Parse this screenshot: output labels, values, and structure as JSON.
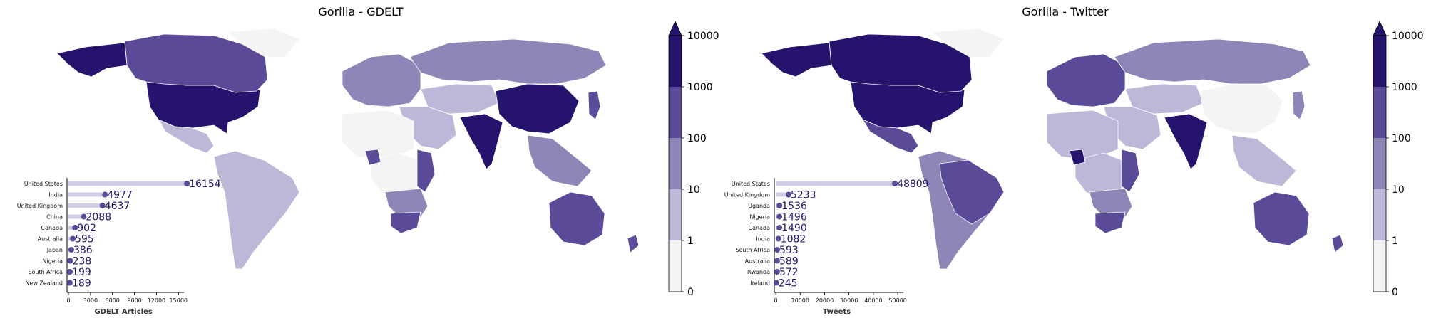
{
  "colors": {
    "bins": [
      "#f4f4f4",
      "#bcb9d8",
      "#8d86b7",
      "#5a4a98",
      "#26136e"
    ],
    "lollipop_line": "#d0ceE6",
    "lollipop_dot": "#5a4a98",
    "value_text": "#26136e"
  },
  "colorbar": {
    "labels": [
      "0",
      "1",
      "10",
      "100",
      "1000",
      "10000"
    ],
    "extend": "max"
  },
  "chart_data": [
    {
      "type": "choropleth",
      "title": "Gorilla - GDELT",
      "scale": "log bins",
      "regions": [
        {
          "name": "United States",
          "bin": 4
        },
        {
          "name": "Canada",
          "bin": 3
        },
        {
          "name": "Alaska",
          "bin": 4
        },
        {
          "name": "Mexico",
          "bin": 1
        },
        {
          "name": "South America",
          "bin": 1
        },
        {
          "name": "Greenland",
          "bin": 0
        },
        {
          "name": "Europe",
          "bin": 2
        },
        {
          "name": "Russia",
          "bin": 2
        },
        {
          "name": "Central Asia",
          "bin": 1
        },
        {
          "name": "Middle East",
          "bin": 1
        },
        {
          "name": "India",
          "bin": 4
        },
        {
          "name": "China",
          "bin": 4
        },
        {
          "name": "Southeast Asia",
          "bin": 2
        },
        {
          "name": "Japan",
          "bin": 3
        },
        {
          "name": "North Africa",
          "bin": 0
        },
        {
          "name": "Central Africa",
          "bin": 0
        },
        {
          "name": "East Africa",
          "bin": 3
        },
        {
          "name": "Southern Africa",
          "bin": 2
        },
        {
          "name": "South Africa",
          "bin": 3
        },
        {
          "name": "Australia",
          "bin": 3
        },
        {
          "name": "New Zealand",
          "bin": 3
        },
        {
          "name": "Nigeria",
          "bin": 3
        }
      ]
    },
    {
      "type": "bar",
      "orientation": "horizontal-lollipop",
      "xlabel": "GDELT Articles",
      "categories": [
        "United States",
        "India",
        "United Kingdom",
        "China",
        "Canada",
        "Australia",
        "Japan",
        "Nigeria",
        "South Africa",
        "New Zealand"
      ],
      "values": [
        16154,
        4977,
        4637,
        2088,
        902,
        595,
        386,
        238,
        199,
        189
      ],
      "value_labels": [
        "16154",
        "4977",
        "4637",
        "2088",
        "902",
        "595",
        "386",
        "238",
        "199",
        "189"
      ],
      "xticks": [
        0,
        3000,
        6000,
        9000,
        12000,
        15000
      ],
      "xtick_labels": [
        "0",
        "3000",
        "6000",
        "9000",
        "12000",
        "15000"
      ],
      "xlim": [
        0,
        17500
      ]
    },
    {
      "type": "choropleth",
      "title": "Gorilla - Twitter",
      "scale": "log bins",
      "regions": [
        {
          "name": "United States",
          "bin": 4
        },
        {
          "name": "Canada",
          "bin": 4
        },
        {
          "name": "Alaska",
          "bin": 4
        },
        {
          "name": "Mexico",
          "bin": 3
        },
        {
          "name": "South America",
          "bin": 2
        },
        {
          "name": "Brazil",
          "bin": 3
        },
        {
          "name": "Greenland",
          "bin": 0
        },
        {
          "name": "Europe",
          "bin": 3
        },
        {
          "name": "Russia",
          "bin": 2
        },
        {
          "name": "Central Asia",
          "bin": 1
        },
        {
          "name": "Middle East",
          "bin": 1
        },
        {
          "name": "India",
          "bin": 4
        },
        {
          "name": "China",
          "bin": 0
        },
        {
          "name": "Southeast Asia",
          "bin": 1
        },
        {
          "name": "Japan",
          "bin": 2
        },
        {
          "name": "North Africa",
          "bin": 1
        },
        {
          "name": "Central Africa",
          "bin": 1
        },
        {
          "name": "East Africa",
          "bin": 3
        },
        {
          "name": "Southern Africa",
          "bin": 2
        },
        {
          "name": "South Africa",
          "bin": 3
        },
        {
          "name": "Australia",
          "bin": 3
        },
        {
          "name": "New Zealand",
          "bin": 3
        },
        {
          "name": "Nigeria",
          "bin": 4
        }
      ]
    },
    {
      "type": "bar",
      "orientation": "horizontal-lollipop",
      "xlabel": "Tweets",
      "categories": [
        "United States",
        "United Kingdom",
        "Uganda",
        "Nigeria",
        "Canada",
        "India",
        "South Africa",
        "Australia",
        "Rwanda",
        "Ireland"
      ],
      "values": [
        48809,
        5233,
        1536,
        1496,
        1490,
        1082,
        593,
        589,
        572,
        245
      ],
      "value_labels": [
        "48809",
        "5233",
        "1536",
        "1496",
        "1490",
        "1082",
        "593",
        "589",
        "572",
        "245"
      ],
      "xticks": [
        0,
        10000,
        20000,
        30000,
        40000,
        50000
      ],
      "xtick_labels": [
        "0",
        "10000",
        "20000",
        "30000",
        "40000",
        "50000"
      ],
      "xlim": [
        0,
        52000
      ]
    }
  ]
}
